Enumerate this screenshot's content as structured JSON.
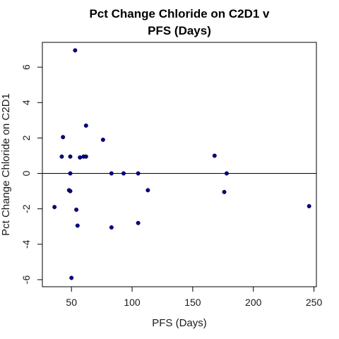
{
  "chart_data": {
    "type": "scatter",
    "title_lines": [
      "Pct Change Chloride on C2D1 v",
      "PFS (Days)"
    ],
    "xlabel": "PFS (Days)",
    "ylabel": "Pct Change Chloride on C2D1",
    "xlim": [
      26,
      252
    ],
    "ylim": [
      -6.4,
      7.4
    ],
    "x_ticks": [
      50,
      100,
      150,
      200,
      250
    ],
    "y_ticks": [
      -6,
      -4,
      -2,
      0,
      2,
      4,
      6
    ],
    "reference_line_y": 0,
    "point_color": "#00008B",
    "points": [
      {
        "x": 36,
        "y": -1.9
      },
      {
        "x": 42,
        "y": 0.95
      },
      {
        "x": 43,
        "y": 2.05
      },
      {
        "x": 48,
        "y": -0.95
      },
      {
        "x": 49,
        "y": -1.0
      },
      {
        "x": 49,
        "y": 0.95
      },
      {
        "x": 49,
        "y": 0.0
      },
      {
        "x": 50,
        "y": -5.9
      },
      {
        "x": 53,
        "y": 6.95
      },
      {
        "x": 54,
        "y": -2.05
      },
      {
        "x": 55,
        "y": -2.95
      },
      {
        "x": 57,
        "y": 0.9
      },
      {
        "x": 60,
        "y": 0.95
      },
      {
        "x": 62,
        "y": 0.95
      },
      {
        "x": 62,
        "y": 2.7
      },
      {
        "x": 76,
        "y": 1.9
      },
      {
        "x": 83,
        "y": 0.0
      },
      {
        "x": 83,
        "y": -3.05
      },
      {
        "x": 93,
        "y": 0.0
      },
      {
        "x": 105,
        "y": 0.0
      },
      {
        "x": 105,
        "y": -2.8
      },
      {
        "x": 113,
        "y": -0.95
      },
      {
        "x": 168,
        "y": 1.0
      },
      {
        "x": 176,
        "y": -1.05
      },
      {
        "x": 178,
        "y": 0.0
      },
      {
        "x": 246,
        "y": -1.85
      }
    ]
  }
}
